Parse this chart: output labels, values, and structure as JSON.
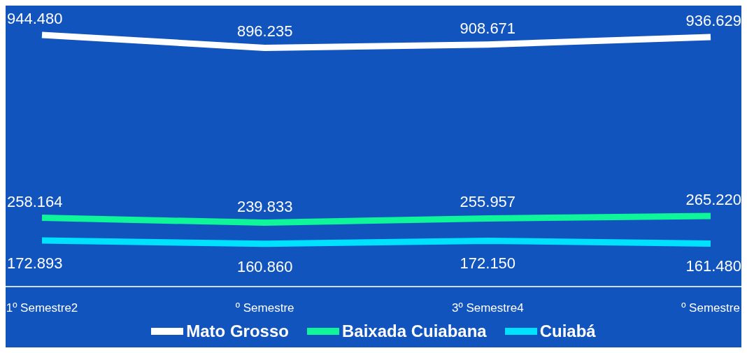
{
  "chart_data": {
    "type": "line",
    "categories": [
      "1º Semestre2",
      "º Semestre",
      "3º Semestre4",
      "º Semestre"
    ],
    "series": [
      {
        "name": "Mato Grosso",
        "color": "#ffffff",
        "values": [
          944480,
          896235,
          908671,
          936629
        ],
        "value_labels": [
          "944.480",
          "896.235",
          "908.671",
          "936.629"
        ]
      },
      {
        "name": "Baixada Cuiabana",
        "color": "#0ef59a",
        "values": [
          258164,
          239833,
          255957,
          265220
        ],
        "value_labels": [
          "258.164",
          "239.833",
          "255.957",
          "265.220"
        ]
      },
      {
        "name": "Cuiabá",
        "color": "#00e0ff",
        "values": [
          172893,
          160860,
          172150,
          161480
        ],
        "value_labels": [
          "172.893",
          "160.860",
          "172.150",
          "161.480"
        ]
      }
    ],
    "legend": "bottom",
    "marker": "none",
    "line_style": "solid",
    "grid": false
  }
}
